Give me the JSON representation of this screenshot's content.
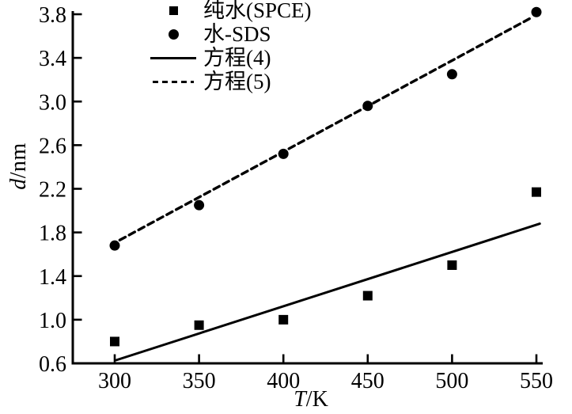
{
  "chart_data": {
    "type": "scatter",
    "title": "",
    "xlabel": "T/K",
    "xlabel_italic": "T",
    "xlabel_rest": "/K",
    "ylabel": "d/nm",
    "ylabel_italic": "d",
    "ylabel_rest": "/nm",
    "x_tick_labels": [
      "300",
      "350",
      "400",
      "450",
      "500",
      "550"
    ],
    "y_tick_labels": [
      "3.8",
      "3.4",
      "3.0",
      "2.6",
      "2.2",
      "1.8",
      "1.4",
      "1.0",
      "0.6"
    ],
    "xlim": [
      275,
      553
    ],
    "ylim": [
      0.6,
      3.8
    ],
    "grid": false,
    "legend_position": "top-left-inside",
    "colors": {
      "foreground": "#000000",
      "background": "#ffffff"
    },
    "categories_x": [
      300,
      350,
      400,
      450,
      500,
      550
    ],
    "series": [
      {
        "name": "纯水(SPCE)",
        "marker": "square",
        "x": [
          300,
          350,
          400,
          450,
          500,
          550
        ],
        "values": [
          0.8,
          0.95,
          1.0,
          1.22,
          1.5,
          2.17
        ]
      },
      {
        "name": "水-SDS",
        "marker": "circle",
        "x": [
          300,
          350,
          400,
          450,
          500,
          550
        ],
        "values": [
          1.68,
          2.05,
          2.52,
          2.96,
          3.25,
          3.82
        ]
      }
    ],
    "fit_lines": [
      {
        "name": "方程(4)",
        "style": "solid",
        "x": [
          301,
          552
        ],
        "values": [
          0.63,
          1.88
        ]
      },
      {
        "name": "方程(5)",
        "style": "dashed",
        "x": [
          303,
          546
        ],
        "values": [
          1.73,
          3.76
        ]
      }
    ]
  }
}
